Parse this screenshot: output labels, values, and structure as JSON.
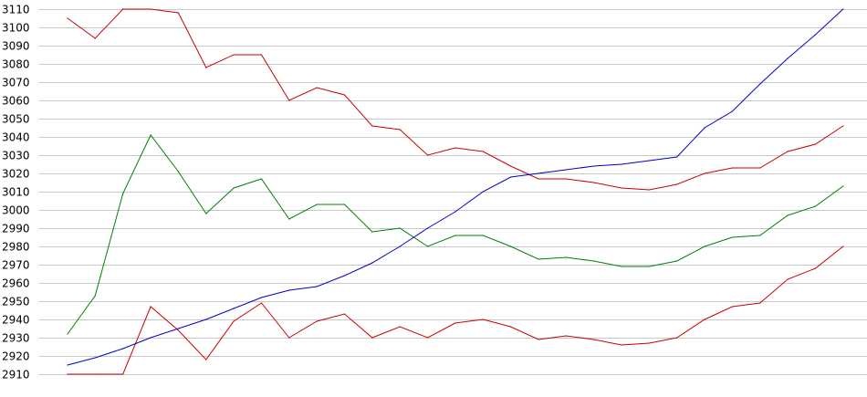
{
  "chart_data": {
    "type": "line",
    "title": "",
    "xlabel": "",
    "ylabel": "",
    "ylim": [
      2910,
      3110
    ],
    "yticks": [
      2910,
      2920,
      2930,
      2940,
      2950,
      2960,
      2970,
      2980,
      2990,
      3000,
      3010,
      3020,
      3030,
      3040,
      3050,
      3060,
      3070,
      3080,
      3090,
      3100,
      3110
    ],
    "x": [
      1,
      2,
      3,
      4,
      5,
      6,
      7,
      8,
      9,
      10,
      11,
      12,
      13,
      14,
      15,
      16,
      17,
      18,
      19,
      20,
      21,
      22,
      23,
      24,
      25,
      26,
      27,
      28,
      29,
      30
    ],
    "grid": true,
    "legend": "none",
    "series": [
      {
        "color": "#cc0000",
        "values": [
          3105,
          3094,
          3110,
          3110,
          3108,
          3078,
          3085,
          3085,
          3060,
          3067,
          3063,
          3046,
          3044,
          3030,
          3034,
          3032,
          3024,
          3017,
          3017,
          3015,
          3012,
          3011,
          3014,
          3020,
          3023,
          3023,
          3032,
          3036,
          3046,
          null
        ]
      },
      {
        "color": "#cc0000",
        "values": [
          2910,
          2910,
          2910,
          2947,
          2934,
          2918,
          2939,
          2949,
          2930,
          2939,
          2943,
          2930,
          2936,
          2930,
          2938,
          2940,
          2936,
          2929,
          2931,
          2929,
          2926,
          2927,
          2930,
          2940,
          2947,
          2949,
          2962,
          2968,
          2980,
          null
        ]
      },
      {
        "color": "#008000",
        "values": [
          2932,
          2953,
          3009,
          3041,
          3021,
          2998,
          3012,
          3017,
          2995,
          3003,
          3003,
          2988,
          2990,
          2980,
          2986,
          2986,
          2980,
          2973,
          2974,
          2972,
          2969,
          2969,
          2972,
          2980,
          2985,
          2986,
          2997,
          3002,
          3013,
          null
        ]
      },
      {
        "color": "#0000cc",
        "values": [
          2915,
          2919,
          2924,
          2930,
          2935,
          2940,
          2946,
          2952,
          2956,
          2958,
          2964,
          2971,
          2980,
          2990,
          2999,
          3010,
          3018,
          3020,
          3022,
          3024,
          3025,
          3027,
          3029,
          3045,
          3054,
          3069,
          3083,
          3096,
          3110,
          null
        ]
      }
    ]
  }
}
